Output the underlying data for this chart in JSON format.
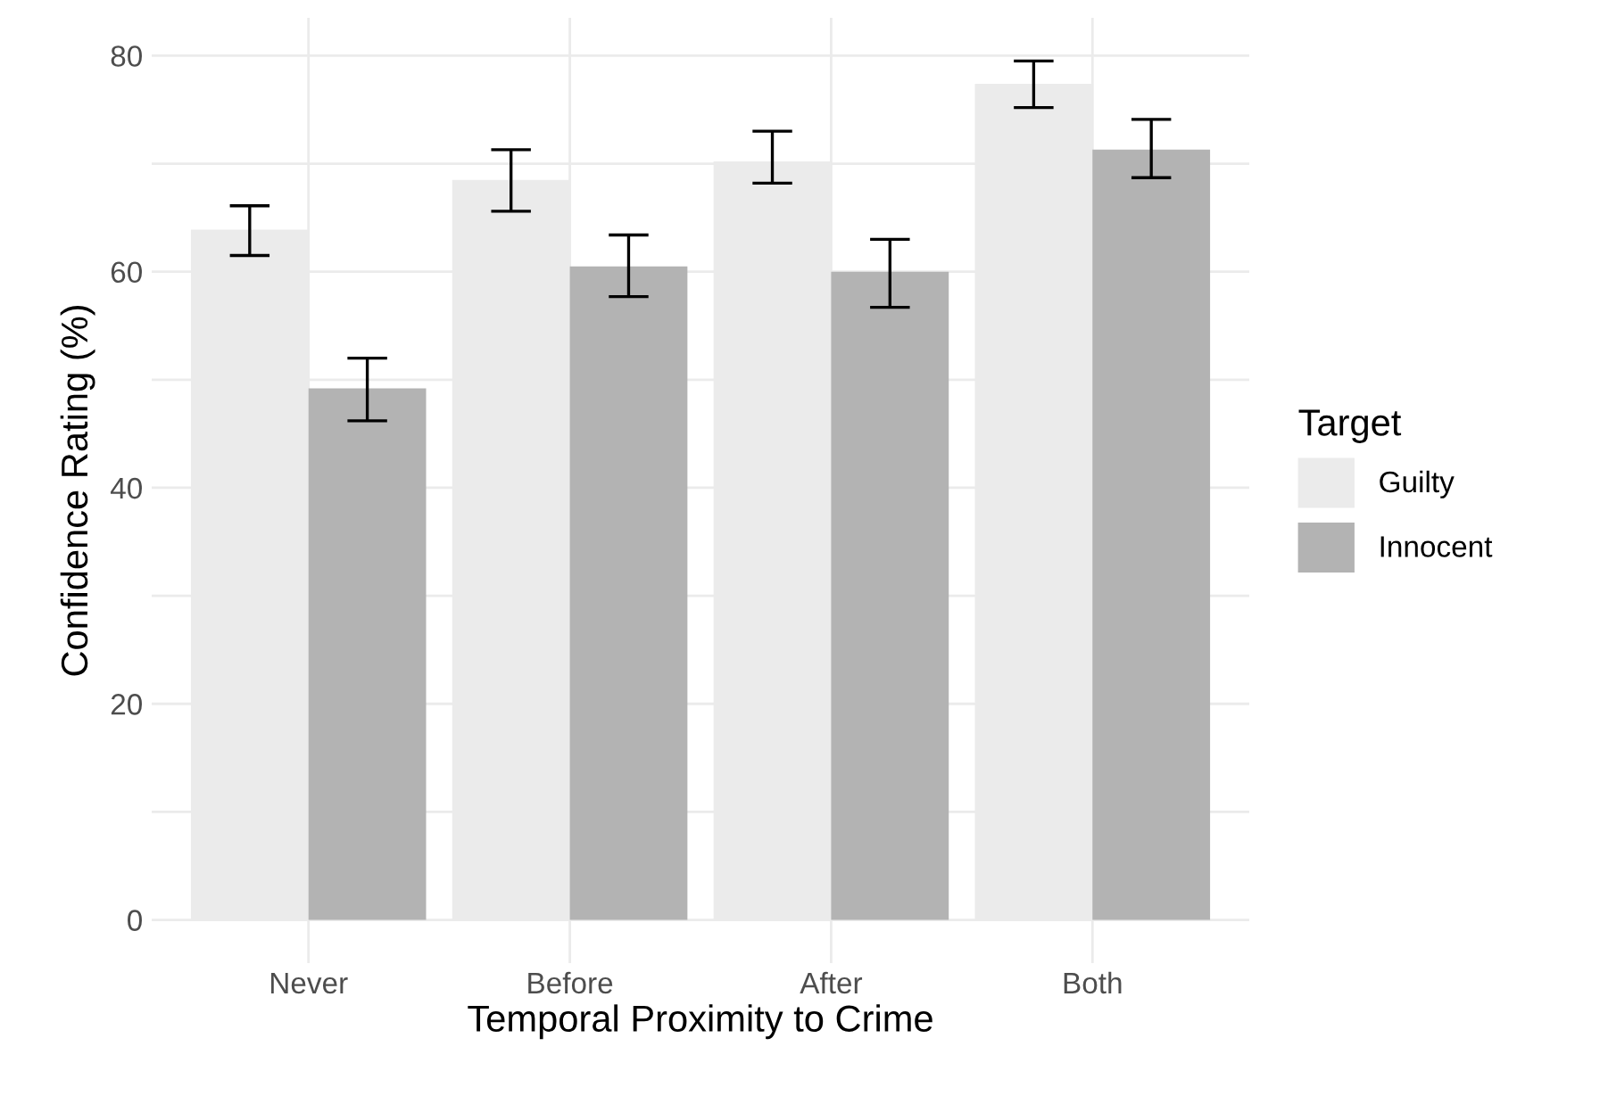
{
  "chart_data": {
    "type": "bar",
    "xlabel": "Temporal Proximity to Crime",
    "ylabel": "Confidence Rating (%)",
    "legend_title": "Target",
    "categories": [
      "Never",
      "Before",
      "After",
      "Both"
    ],
    "series": [
      {
        "name": "Guilty",
        "color": "#ebebeb",
        "values": [
          63.9,
          68.5,
          70.2,
          77.4
        ],
        "errors": [
          [
            61.5,
            66.1
          ],
          [
            65.6,
            71.3
          ],
          [
            68.2,
            73.0
          ],
          [
            75.2,
            79.5
          ]
        ]
      },
      {
        "name": "Innocent",
        "color": "#b3b3b3",
        "values": [
          49.2,
          60.5,
          60.0,
          71.3
        ],
        "errors": [
          [
            46.2,
            52.0
          ],
          [
            57.7,
            63.4
          ],
          [
            56.7,
            63.0
          ],
          [
            68.7,
            74.1
          ]
        ]
      }
    ],
    "ylim": [
      -4,
      83.5
    ],
    "yticks": [
      0,
      {
        "value": 10,
        "label": null
      },
      20,
      {
        "value": 30,
        "label": null
      },
      40,
      {
        "value": 50,
        "label": null
      },
      60,
      {
        "value": 70,
        "label": null
      },
      80
    ],
    "grid": true,
    "legend": "right"
  }
}
